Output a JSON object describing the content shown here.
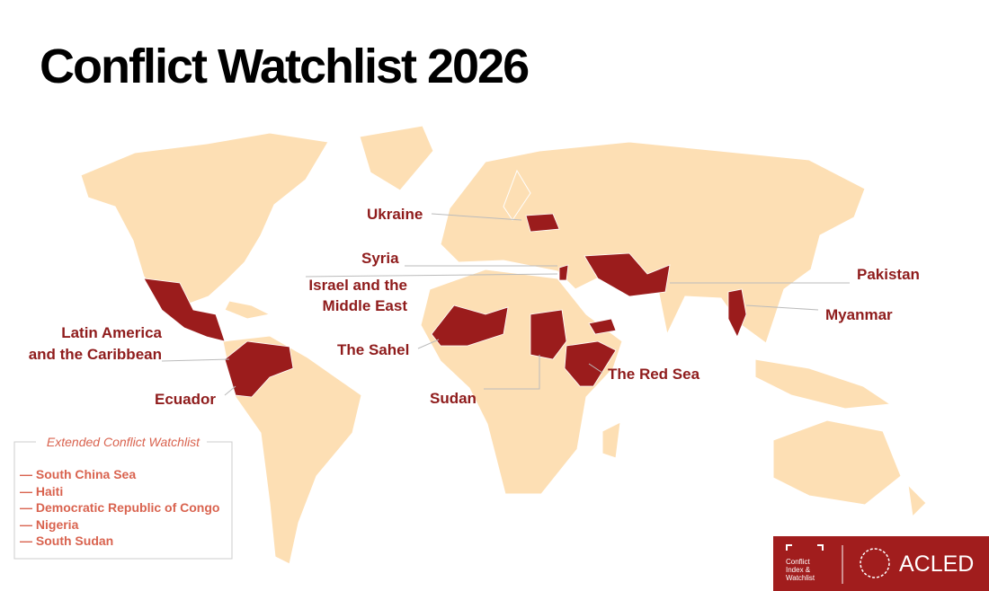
{
  "title": "Conflict Watchlist 2026",
  "labels": {
    "ukraine": "Ukraine",
    "syria": "Syria",
    "israel": [
      "Israel and the",
      "Middle East"
    ],
    "pakistan": "Pakistan",
    "myanmar": "Myanmar",
    "latin_america": [
      "Latin America",
      "and the Caribbean"
    ],
    "sahel": "The Sahel",
    "red_sea": "The Red Sea",
    "ecuador": "Ecuador",
    "sudan": "Sudan"
  },
  "legend": {
    "title": "Extended Conflict Watchlist",
    "items": [
      "— South China Sea",
      "— Haiti",
      "— Democratic Republic of Congo",
      "— Nigeria",
      "— South Sudan"
    ]
  },
  "logo": {
    "index": [
      "Conflict",
      "Index &",
      "Watchlist"
    ],
    "brand": "ACLED"
  }
}
